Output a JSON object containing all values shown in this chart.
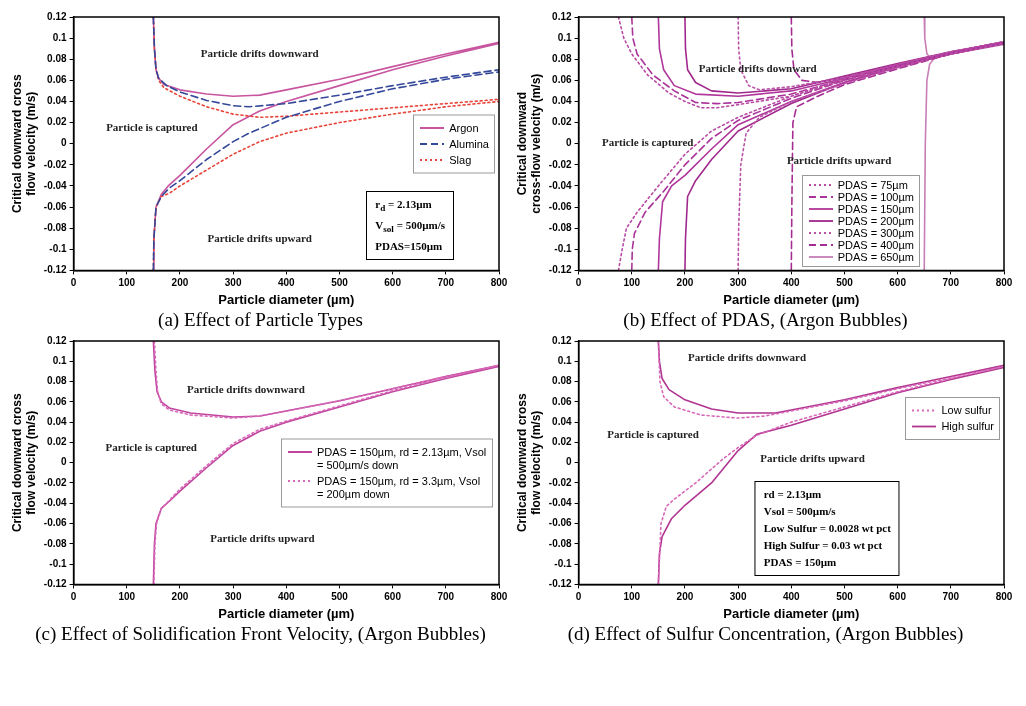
{
  "chart_data": [
    {
      "type": "line",
      "title": "(a) Effect of Particle Types",
      "xlabel": "Particle diameter (µm)",
      "ylabel": "Critical downward cross flow velocity (m/s)",
      "xlim": [
        0,
        800
      ],
      "ylim": [
        -0.12,
        0.12
      ],
      "xticks": [
        0,
        100,
        200,
        300,
        400,
        500,
        600,
        700,
        800
      ],
      "yticks": [
        -0.12,
        -0.1,
        -0.08,
        -0.06,
        -0.04,
        -0.02,
        0,
        0.02,
        0.04,
        0.06,
        0.08,
        0.1,
        0.12
      ],
      "grid": false,
      "legend": "right",
      "marker": "none",
      "annotations": [
        "Particle drifts downward",
        "Particle is captured",
        "Particle drifts upward",
        "r$_{d}$ = 2.13µm",
        "V$_{sol}$ = 500µm/s",
        "PDAS=150µm"
      ],
      "series": [
        {
          "name": "Argon",
          "color": "#c8559f",
          "line_style": "solid",
          "x": [
            150,
            152,
            155,
            160,
            170,
            200,
            250,
            300,
            350,
            400,
            500,
            600,
            700,
            800,
            null,
            150,
            151,
            155,
            165,
            178,
            200,
            250,
            300,
            350,
            400,
            500,
            600,
            700,
            800
          ],
          "values": [
            0.12,
            0.09,
            0.07,
            0.062,
            0.056,
            0.051,
            0.047,
            0.045,
            0.046,
            0.051,
            0.061,
            0.073,
            0.085,
            0.096,
            null,
            -0.12,
            -0.09,
            -0.06,
            -0.048,
            -0.04,
            -0.03,
            -0.005,
            0.018,
            0.031,
            0.04,
            0.055,
            0.07,
            0.083,
            0.095
          ]
        },
        {
          "name": "Alumina",
          "color": "#34489a",
          "line_style": "dashed",
          "x": [
            150,
            152,
            155,
            160,
            175,
            200,
            250,
            300,
            330,
            400,
            500,
            600,
            700,
            800,
            null,
            150,
            151,
            155,
            165,
            180,
            200,
            250,
            300,
            330,
            400,
            500,
            600,
            700,
            800
          ],
          "values": [
            0.12,
            0.09,
            0.07,
            0.062,
            0.055,
            0.049,
            0.041,
            0.036,
            0.035,
            0.038,
            0.046,
            0.055,
            0.063,
            0.07,
            null,
            -0.12,
            -0.09,
            -0.06,
            -0.05,
            -0.042,
            -0.035,
            -0.015,
            0.002,
            0.01,
            0.025,
            0.04,
            0.052,
            0.061,
            0.068
          ]
        },
        {
          "name": "Slag",
          "color": "#e8443a",
          "line_style": "dotted",
          "x": [
            150,
            152,
            155,
            160,
            170,
            200,
            250,
            300,
            350,
            400,
            500,
            600,
            700,
            800,
            null,
            150,
            151,
            155,
            165,
            180,
            200,
            250,
            300,
            350,
            400,
            500,
            600,
            700,
            800
          ],
          "values": [
            0.12,
            0.09,
            0.07,
            0.06,
            0.053,
            0.045,
            0.035,
            0.028,
            0.025,
            0.026,
            0.03,
            0.034,
            0.038,
            0.042,
            null,
            -0.12,
            -0.09,
            -0.06,
            -0.05,
            -0.047,
            -0.04,
            -0.025,
            -0.01,
            0.002,
            0.01,
            0.02,
            0.028,
            0.035,
            0.04
          ]
        }
      ]
    },
    {
      "type": "line",
      "title": "(b) Effect of PDAS,  (Argon Bubbles)",
      "xlabel": "Particle diameter (µm)",
      "ylabel": "Critical downward cross-flow velocity (m/s)",
      "xlim": [
        0,
        800
      ],
      "ylim": [
        -0.12,
        0.12
      ],
      "xticks": [
        0,
        100,
        200,
        300,
        400,
        500,
        600,
        700,
        800
      ],
      "yticks": [
        -0.12,
        -0.1,
        -0.08,
        -0.06,
        -0.04,
        -0.02,
        0,
        0.02,
        0.04,
        0.06,
        0.08,
        0.1,
        0.12
      ],
      "grid": false,
      "legend": "bottom right",
      "marker": "none",
      "annotations": [
        "Particle drifts downward",
        "Particle is captured",
        "Particle drifts upward"
      ],
      "series": [
        {
          "name": "PDAS =  75µm",
          "color": "#b84aa4",
          "line_style": "dotted",
          "x": [
            75,
            85,
            100,
            130,
            170,
            200,
            230,
            260,
            300,
            400,
            500,
            600,
            700,
            800,
            null,
            75,
            82,
            90,
            110,
            150,
            200,
            250,
            300,
            400,
            500,
            600,
            700,
            800
          ],
          "values": [
            0.12,
            0.1,
            0.085,
            0.065,
            0.048,
            0.04,
            0.034,
            0.034,
            0.037,
            0.045,
            0.06,
            0.073,
            0.085,
            0.095,
            null,
            -0.12,
            -0.1,
            -0.08,
            -0.065,
            -0.04,
            -0.01,
            0.012,
            0.025,
            0.045,
            0.062,
            0.075,
            0.087,
            0.097
          ]
        },
        {
          "name": "PDAS =  100µm",
          "color": "#a8349a",
          "line_style": "dashed",
          "x": [
            100,
            102,
            110,
            140,
            180,
            220,
            260,
            300,
            400,
            500,
            600,
            700,
            800,
            null,
            100,
            101,
            105,
            125,
            160,
            200,
            250,
            300,
            400,
            500,
            600,
            700,
            800
          ],
          "values": [
            0.12,
            0.1,
            0.085,
            0.065,
            0.05,
            0.039,
            0.038,
            0.039,
            0.047,
            0.061,
            0.074,
            0.086,
            0.096,
            null,
            -0.12,
            -0.1,
            -0.085,
            -0.065,
            -0.045,
            -0.02,
            0.005,
            0.022,
            0.043,
            0.06,
            0.074,
            0.086,
            0.096
          ]
        },
        {
          "name": "PDAS =  150µm",
          "color": "#b0369a",
          "line_style": "solid",
          "x": [
            150,
            152,
            160,
            180,
            220,
            300,
            400,
            500,
            600,
            700,
            800,
            null,
            150,
            152,
            158,
            175,
            200,
            250,
            300,
            400,
            500,
            600,
            700,
            800
          ],
          "values": [
            0.12,
            0.09,
            0.07,
            0.055,
            0.047,
            0.045,
            0.05,
            0.062,
            0.075,
            0.086,
            0.095,
            null,
            -0.12,
            -0.09,
            -0.055,
            -0.04,
            -0.03,
            -0.005,
            0.018,
            0.04,
            0.058,
            0.073,
            0.085,
            0.095
          ]
        },
        {
          "name": "PDAS =  200µm",
          "color": "#a0288c",
          "line_style": "solid",
          "x": [
            200,
            201,
            205,
            220,
            250,
            300,
            400,
            500,
            600,
            700,
            800,
            null,
            200,
            201,
            205,
            220,
            250,
            300,
            400,
            500,
            600,
            700,
            800
          ],
          "values": [
            0.12,
            0.09,
            0.07,
            0.058,
            0.05,
            0.048,
            0.052,
            0.064,
            0.076,
            0.087,
            0.096,
            null,
            -0.12,
            -0.09,
            -0.05,
            -0.035,
            -0.015,
            0.012,
            0.038,
            0.058,
            0.073,
            0.085,
            0.095
          ]
        },
        {
          "name": "PDAS =  300µm",
          "color": "#bc52a8",
          "line_style": "dotted",
          "x": [
            300,
            301,
            305,
            320,
            340,
            400,
            500,
            600,
            700,
            800,
            null,
            300,
            301,
            305,
            315,
            340,
            400,
            500,
            600,
            700,
            800
          ],
          "values": [
            0.12,
            0.09,
            0.07,
            0.055,
            0.051,
            0.054,
            0.063,
            0.075,
            0.087,
            0.096,
            null,
            -0.12,
            -0.08,
            -0.02,
            0.01,
            0.025,
            0.04,
            0.057,
            0.072,
            0.085,
            0.095
          ]
        },
        {
          "name": "PDAS =  400µm",
          "color": "#a42c92",
          "line_style": "dashed",
          "x": [
            400,
            401,
            405,
            420,
            450,
            500,
            600,
            700,
            800,
            null,
            400,
            401,
            403,
            410,
            450,
            500,
            600,
            700,
            800
          ],
          "values": [
            0.12,
            0.09,
            0.07,
            0.06,
            0.058,
            0.063,
            0.075,
            0.087,
            0.096,
            null,
            -0.12,
            -0.06,
            0.02,
            0.035,
            0.045,
            0.056,
            0.071,
            0.085,
            0.095
          ]
        },
        {
          "name": "PDAS =  650µm",
          "color": "#c77db5",
          "line_style": "solid",
          "x": [
            650,
            651,
            655,
            665,
            700,
            800,
            null,
            650,
            652,
            655,
            660,
            670,
            700,
            800
          ],
          "values": [
            0.12,
            0.1,
            0.085,
            0.08,
            0.086,
            0.095,
            null,
            -0.12,
            0,
            0.06,
            0.075,
            0.082,
            0.085,
            0.094
          ]
        }
      ]
    },
    {
      "type": "line",
      "title": "(c)  Effect of Solidification Front Velocity, (Argon Bubbles)",
      "xlabel": "Particle diameter (µm)",
      "ylabel": "Critical downward cross flow velocity (m/s)",
      "xlim": [
        0,
        800
      ],
      "ylim": [
        -0.12,
        0.12
      ],
      "xticks": [
        0,
        100,
        200,
        300,
        400,
        500,
        600,
        700,
        800
      ],
      "yticks": [
        -0.12,
        -0.1,
        -0.08,
        -0.06,
        -0.04,
        -0.02,
        0,
        0.02,
        0.04,
        0.06,
        0.08,
        0.1,
        0.12
      ],
      "grid": false,
      "legend": "right",
      "marker": "none",
      "annotations": [
        "Particle drifts downward",
        "Particle is captured",
        "Particle drifts upward"
      ],
      "series": [
        {
          "name": "PDAS = 150µm, rd = 2.13µm, Vsol = 500µm/s down",
          "color": "#c0449e",
          "line_style": "solid",
          "x": [
            150,
            153,
            157,
            165,
            180,
            220,
            300,
            350,
            400,
            500,
            600,
            700,
            800,
            null,
            150,
            152,
            155,
            165,
            180,
            200,
            250,
            300,
            350,
            400,
            500,
            600,
            700,
            800
          ],
          "values": [
            0.12,
            0.09,
            0.07,
            0.06,
            0.054,
            0.049,
            0.045,
            0.046,
            0.051,
            0.061,
            0.073,
            0.085,
            0.096,
            null,
            -0.12,
            -0.08,
            -0.06,
            -0.045,
            -0.038,
            -0.028,
            -0.005,
            0.017,
            0.031,
            0.04,
            0.055,
            0.07,
            0.083,
            0.095
          ]
        },
        {
          "name": "PDAS = 150µm, rd = 3.3µm, Vsol  = 200µm down",
          "color": "#d868b8",
          "line_style": "dotted",
          "x": [
            152,
            155,
            158,
            165,
            180,
            220,
            300,
            350,
            400,
            500,
            600,
            700,
            800,
            null,
            151,
            153,
            156,
            165,
            175,
            200,
            250,
            300,
            350,
            400,
            500,
            600,
            700,
            800
          ],
          "values": [
            0.12,
            0.09,
            0.07,
            0.058,
            0.052,
            0.047,
            0.044,
            0.046,
            0.051,
            0.061,
            0.073,
            0.085,
            0.096,
            null,
            -0.12,
            -0.08,
            -0.06,
            -0.045,
            -0.04,
            -0.026,
            -0.003,
            0.019,
            0.033,
            0.041,
            0.056,
            0.071,
            0.084,
            0.096
          ]
        }
      ]
    },
    {
      "type": "line",
      "title": "(d) Effect of Sulfur Concentration, (Argon Bubbles)",
      "xlabel": "Particle diameter (µm)",
      "ylabel": "Critical downward cross flow velocity (m/s)",
      "xlim": [
        0,
        800
      ],
      "ylim": [
        -0.12,
        0.12
      ],
      "xticks": [
        0,
        100,
        200,
        300,
        400,
        500,
        600,
        700,
        800
      ],
      "yticks": [
        -0.12,
        -0.1,
        -0.08,
        -0.06,
        -0.04,
        -0.02,
        0,
        0.02,
        0.04,
        0.06,
        0.08,
        0.1,
        0.12
      ],
      "grid": false,
      "legend": "top right",
      "marker": "none",
      "annotations": [
        "Particle drifts downward",
        "Particle is captured",
        "Particle drifts upward",
        "rd = 2.13µm",
        "Vsol = 500µm/s",
        "Low Sulfur = 0.0028 wt pct",
        "High Sulfur = 0.03 wt pct",
        "PDAS = 150µm"
      ],
      "series": [
        {
          "name": "Low sulfur",
          "color": "#d868b8",
          "line_style": "dotted",
          "x": [
            150,
            153,
            160,
            180,
            230,
            300,
            350,
            400,
            500,
            600,
            700,
            800,
            null,
            150,
            155,
            165,
            180,
            220,
            270,
            300,
            335,
            400,
            500,
            600,
            700,
            800
          ],
          "values": [
            0.12,
            0.08,
            0.065,
            0.055,
            0.047,
            0.044,
            0.046,
            0.051,
            0.061,
            0.073,
            0.084,
            0.095,
            null,
            -0.12,
            -0.06,
            -0.043,
            -0.036,
            -0.02,
            0.003,
            0.015,
            0.027,
            0.04,
            0.055,
            0.07,
            0.083,
            0.095
          ]
        },
        {
          "name": "High sulfur",
          "color": "#b03490",
          "line_style": "solid",
          "x": [
            150,
            152,
            157,
            170,
            200,
            250,
            300,
            370,
            400,
            500,
            600,
            700,
            800,
            null,
            150,
            152,
            157,
            175,
            200,
            250,
            300,
            335,
            400,
            500,
            600,
            700,
            800
          ],
          "values": [
            0.12,
            0.1,
            0.083,
            0.072,
            0.062,
            0.053,
            0.049,
            0.049,
            0.052,
            0.062,
            0.074,
            0.085,
            0.096,
            null,
            -0.12,
            -0.09,
            -0.073,
            -0.055,
            -0.042,
            -0.02,
            0.012,
            0.028,
            0.037,
            0.053,
            0.069,
            0.082,
            0.094
          ]
        }
      ]
    }
  ]
}
